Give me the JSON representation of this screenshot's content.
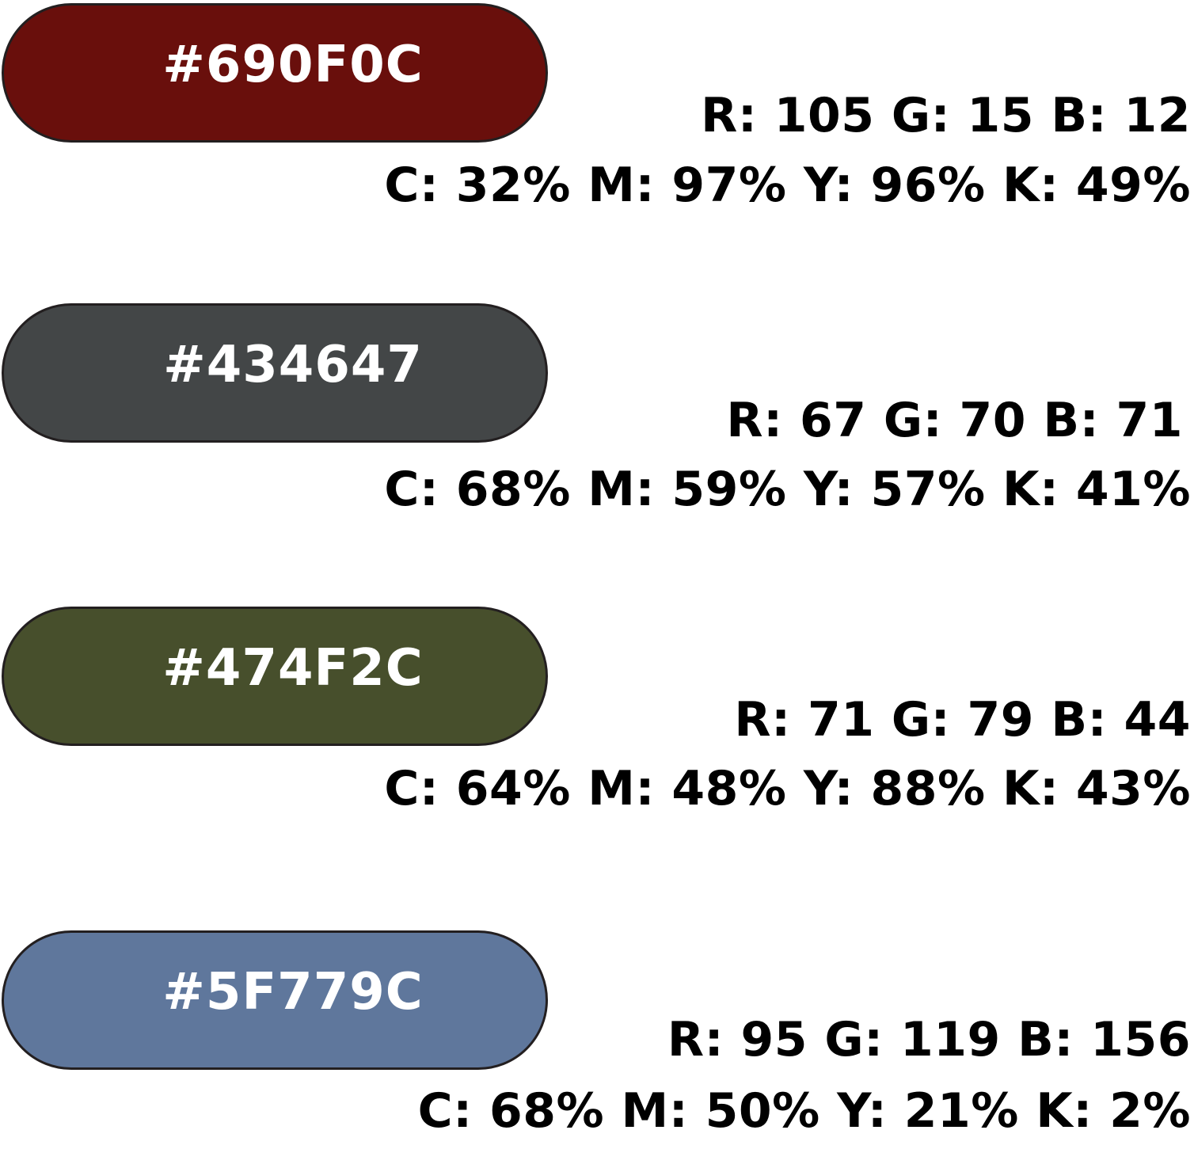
{
  "swatches": [
    {
      "hex_label": "#690F0C",
      "fill": "#690F0C",
      "rgb": "R: 105 G: 15 B: 12",
      "cmyk": "C: 32% M: 97% Y: 96% K: 49%"
    },
    {
      "hex_label": "#434647",
      "fill": "#434647",
      "rgb": "R: 67 G: 70 B: 71",
      "cmyk": "C: 68% M: 59% Y: 57% K: 41%"
    },
    {
      "hex_label": "#474F2C",
      "fill": "#474F2C",
      "rgb": "R: 71 G: 79 B: 44",
      "cmyk": "C: 64% M: 48% Y: 88% K: 43%"
    },
    {
      "hex_label": "#5F779C",
      "fill": "#5F779C",
      "rgb": "R: 95 G: 119 B: 156",
      "cmyk": "C: 68% M: 50% Y: 21% K: 2%"
    }
  ]
}
